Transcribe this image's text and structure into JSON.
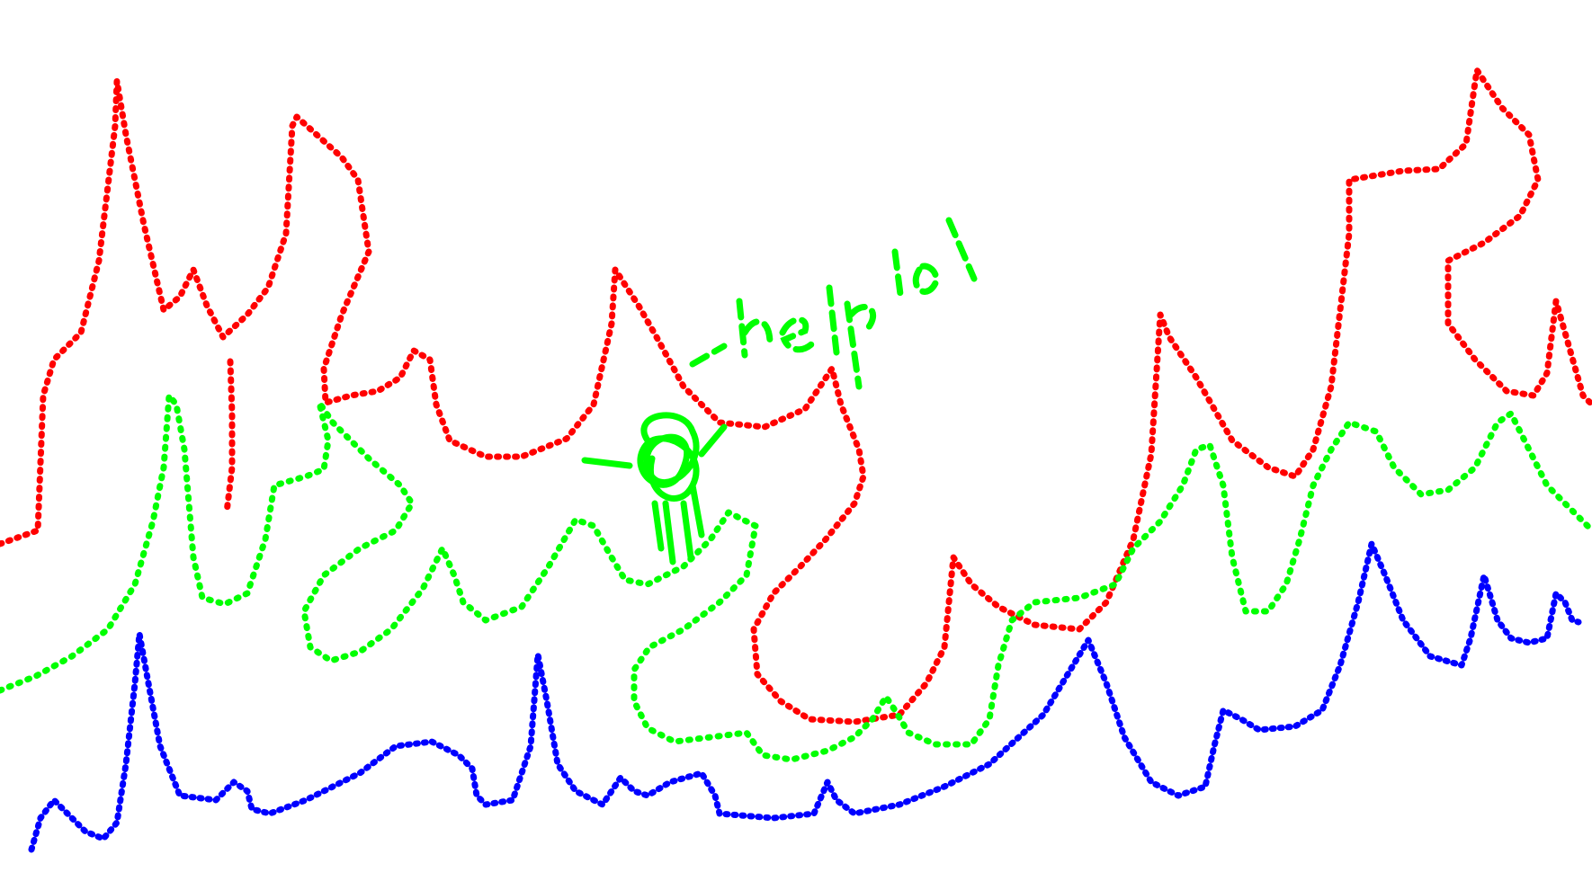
{
  "canvas": {
    "background": "#ffffff"
  },
  "strokes": {
    "red": {
      "color": "#ff0000"
    },
    "green": {
      "color": "#00ff00"
    },
    "blue": {
      "color": "#0000ff"
    }
  },
  "annotation": {
    "text": "-help lol",
    "color": "#00ff00"
  }
}
